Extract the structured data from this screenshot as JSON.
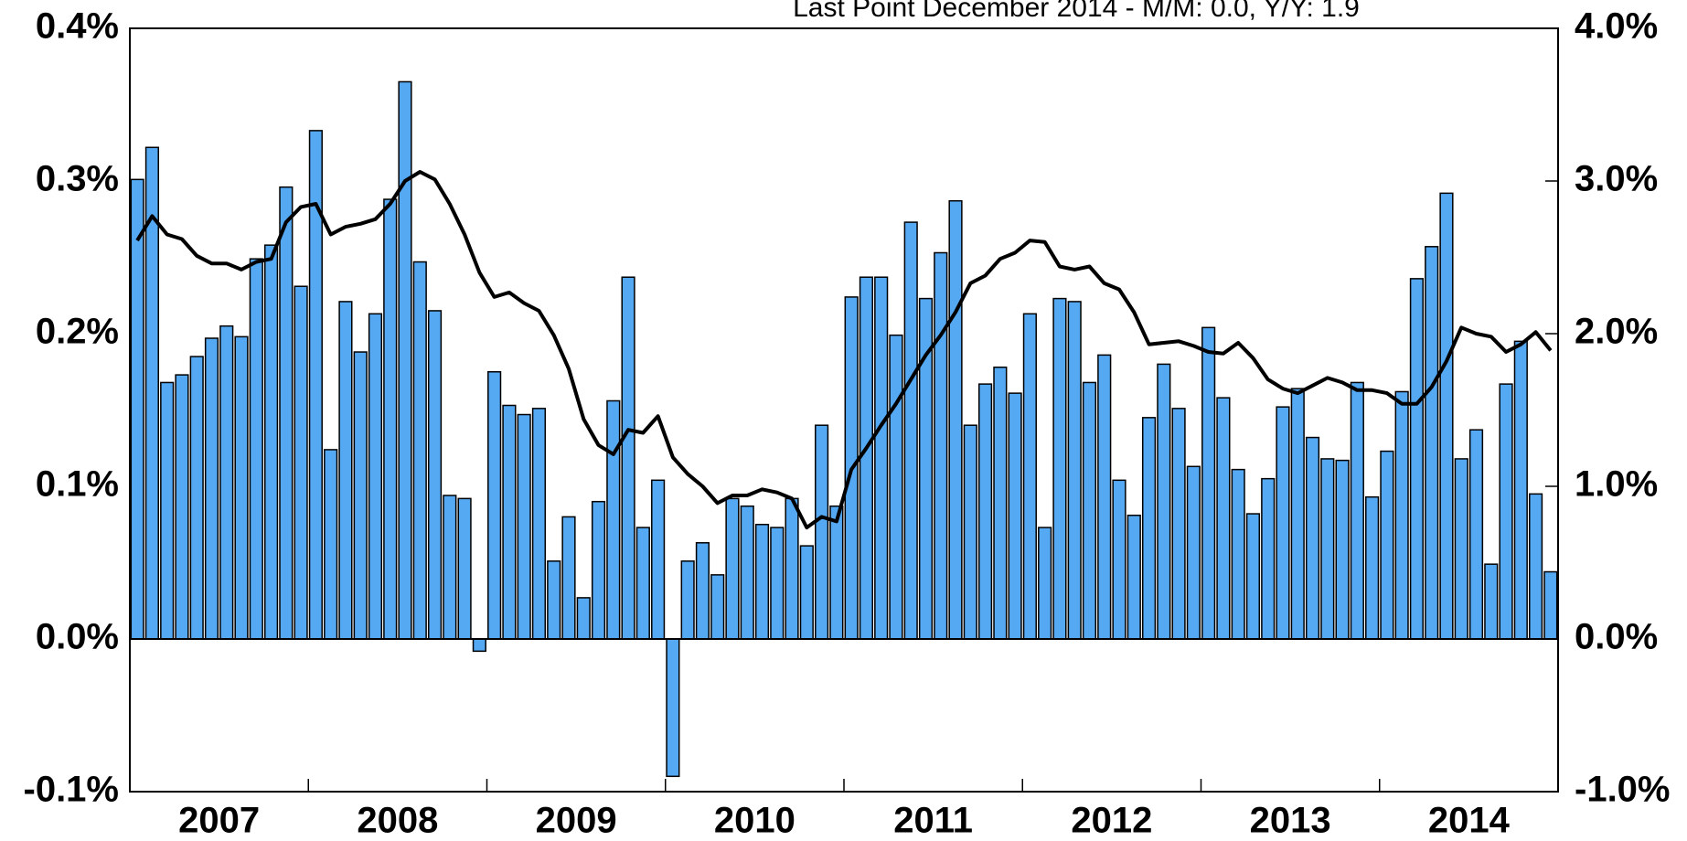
{
  "chart_data": {
    "type": "bar_line",
    "subtitle": "Last Point December 2014 - M/M: 0.0, Y/Y: 1.9",
    "years": [
      "2007",
      "2008",
      "2009",
      "2010",
      "2011",
      "2012",
      "2013",
      "2014"
    ],
    "ylim": [
      -0.1,
      0.4
    ],
    "yticks": [
      {
        "value": -0.1,
        "label": "-0.1%"
      },
      {
        "value": 0.0,
        "label": "0.0%"
      },
      {
        "value": 0.1,
        "label": "0.1%"
      },
      {
        "value": 0.2,
        "label": "0.2%"
      },
      {
        "value": 0.3,
        "label": "0.3%"
      },
      {
        "value": 0.4,
        "label": "0.4%"
      }
    ],
    "y2lim": [
      -1.0,
      4.0
    ],
    "y2ticks": [
      {
        "value": -1.0,
        "label": "-1.0%"
      },
      {
        "value": 0.0,
        "label": "0.0%"
      },
      {
        "value": 1.0,
        "label": "1.0%"
      },
      {
        "value": 2.0,
        "label": "2.0%"
      },
      {
        "value": 3.0,
        "label": "3.0%"
      },
      {
        "value": 4.0,
        "label": "4.0%"
      }
    ],
    "series": [
      {
        "type": "bar",
        "color": "#55a8f2",
        "values": [
          0.301,
          0.322,
          0.168,
          0.173,
          0.185,
          0.197,
          0.205,
          0.198,
          0.249,
          0.258,
          0.296,
          0.231,
          0.333,
          0.124,
          0.221,
          0.188,
          0.213,
          0.288,
          0.365,
          0.247,
          0.215,
          0.094,
          0.092,
          -0.008,
          0.175,
          0.153,
          0.147,
          0.151,
          0.051,
          0.08,
          0.027,
          0.09,
          0.156,
          0.237,
          0.073,
          0.104,
          -0.09,
          0.051,
          0.063,
          0.042,
          0.092,
          0.087,
          0.075,
          0.073,
          0.092,
          0.061,
          0.14,
          0.087,
          0.224,
          0.237,
          0.237,
          0.199,
          0.273,
          0.223,
          0.253,
          0.287,
          0.14,
          0.167,
          0.178,
          0.161,
          0.213,
          0.073,
          0.223,
          0.221,
          0.168,
          0.186,
          0.104,
          0.081,
          0.145,
          0.18,
          0.151,
          0.113,
          0.204,
          0.158,
          0.111,
          0.082,
          0.105,
          0.152,
          0.164,
          0.132,
          0.118,
          0.117,
          0.168,
          0.093,
          0.123,
          0.162,
          0.236,
          0.257,
          0.292,
          0.118,
          0.137,
          0.049,
          0.167,
          0.195,
          0.095,
          0.044
        ]
      },
      {
        "type": "line",
        "axis": "y2",
        "color": "#000000",
        "values": [
          2.61,
          2.77,
          2.65,
          2.62,
          2.51,
          2.46,
          2.46,
          2.42,
          2.47,
          2.49,
          2.73,
          2.83,
          2.85,
          2.65,
          2.7,
          2.72,
          2.75,
          2.85,
          3.0,
          3.06,
          3.01,
          2.85,
          2.65,
          2.4,
          2.24,
          2.27,
          2.2,
          2.15,
          1.99,
          1.77,
          1.44,
          1.27,
          1.21,
          1.37,
          1.35,
          1.46,
          1.19,
          1.08,
          1.0,
          0.89,
          0.94,
          0.94,
          0.98,
          0.96,
          0.92,
          0.73,
          0.8,
          0.77,
          1.11,
          1.25,
          1.4,
          1.54,
          1.7,
          1.86,
          1.99,
          2.14,
          2.33,
          2.38,
          2.49,
          2.53,
          2.61,
          2.6,
          2.44,
          2.42,
          2.44,
          2.33,
          2.29,
          2.14,
          1.93,
          1.94,
          1.95,
          1.92,
          1.88,
          1.87,
          1.94,
          1.84,
          1.7,
          1.64,
          1.61,
          1.66,
          1.71,
          1.68,
          1.63,
          1.63,
          1.61,
          1.54,
          1.54,
          1.65,
          1.82,
          2.04,
          2.0,
          1.98,
          1.88,
          1.93,
          2.01,
          1.89
        ]
      }
    ]
  }
}
